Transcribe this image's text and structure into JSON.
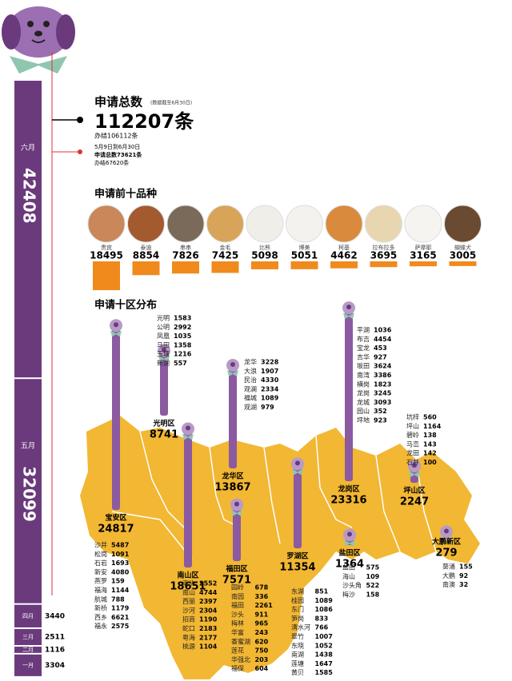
{
  "timeline": [
    {
      "month": "六月",
      "count": 42408
    },
    {
      "month": "五月",
      "count": 32099
    },
    {
      "month": "四月",
      "count": 3440
    },
    {
      "month": "三月",
      "count": 2511
    },
    {
      "month": "二月",
      "count": 1116
    },
    {
      "month": "一月",
      "count": 3304
    }
  ],
  "summary": {
    "title": "申请总数",
    "note": "(数据截至6月30日)",
    "total": "112207条",
    "done": "办结106112条",
    "period": "5月9日到6月30日",
    "period_total": "申请总数73621条",
    "period_done": "办结67620条"
  },
  "breeds": {
    "title": "申请前十品种",
    "items": [
      {
        "name": "贵宾",
        "count": 18495
      },
      {
        "name": "泰迪",
        "count": 8854
      },
      {
        "name": "串串",
        "count": 7826
      },
      {
        "name": "金毛",
        "count": 7425
      },
      {
        "name": "比熊",
        "count": 5098
      },
      {
        "name": "博美",
        "count": 5051
      },
      {
        "name": "柯基",
        "count": 4462
      },
      {
        "name": "拉布拉多",
        "count": 3695
      },
      {
        "name": "萨摩耶",
        "count": 3165
      },
      {
        "name": "蝴蝶犬",
        "count": 3005
      }
    ]
  },
  "districts": {
    "title": "申请十区分布",
    "items": [
      {
        "name": "宝安区",
        "count": 24817,
        "streets": [
          {
            "name": "沙井",
            "count": 5487
          },
          {
            "name": "松岗",
            "count": 1091
          },
          {
            "name": "石岩",
            "count": 1693
          },
          {
            "name": "新安",
            "count": 4080
          },
          {
            "name": "燕罗",
            "count": 159
          },
          {
            "name": "福海",
            "count": 1144
          },
          {
            "name": "航城",
            "count": 788
          },
          {
            "name": "新桥",
            "count": 1179
          },
          {
            "name": "西乡",
            "count": 6621
          },
          {
            "name": "福永",
            "count": 2575
          }
        ]
      },
      {
        "name": "光明区",
        "count": 8741,
        "streets": [
          {
            "name": "光明",
            "count": 1583
          },
          {
            "name": "公明",
            "count": 2992
          },
          {
            "name": "凤凰",
            "count": 1035
          },
          {
            "name": "马田",
            "count": 1358
          },
          {
            "name": "玉塘",
            "count": 1216
          },
          {
            "name": "新湖",
            "count": 557
          }
        ]
      },
      {
        "name": "南山区",
        "count": 18651,
        "streets": [
          {
            "name": "南头",
            "count": 2552
          },
          {
            "name": "南山",
            "count": 4744
          },
          {
            "name": "西丽",
            "count": 2397
          },
          {
            "name": "沙河",
            "count": 2304
          },
          {
            "name": "招商",
            "count": 1190
          },
          {
            "name": "蛇口",
            "count": 2183
          },
          {
            "name": "粤海",
            "count": 2177
          },
          {
            "name": "桃源",
            "count": 1104
          }
        ]
      },
      {
        "name": "龙华区",
        "count": 13867,
        "streets": [
          {
            "name": "龙华",
            "count": 3228
          },
          {
            "name": "大浪",
            "count": 1907
          },
          {
            "name": "民治",
            "count": 4330
          },
          {
            "name": "观澜",
            "count": 2334
          },
          {
            "name": "福城",
            "count": 1089
          },
          {
            "name": "观湖",
            "count": 979
          }
        ]
      },
      {
        "name": "福田区",
        "count": 7571,
        "streets": [
          {
            "name": "园岭",
            "count": 678
          },
          {
            "name": "南园",
            "count": 336
          },
          {
            "name": "福田",
            "count": 2261
          },
          {
            "name": "沙头",
            "count": 911
          },
          {
            "name": "梅林",
            "count": 965
          },
          {
            "name": "华富",
            "count": 243
          },
          {
            "name": "香蜜湖",
            "count": 620
          },
          {
            "name": "莲花",
            "count": 750
          },
          {
            "name": "华强北",
            "count": 203
          },
          {
            "name": "福保",
            "count": 604
          }
        ]
      },
      {
        "name": "罗湖区",
        "count": 11354,
        "streets": [
          {
            "name": "东湖",
            "count": 851
          },
          {
            "name": "桂园",
            "count": 1089
          },
          {
            "name": "东门",
            "count": 1086
          },
          {
            "name": "笋岗",
            "count": 833
          },
          {
            "name": "清水河",
            "count": 766
          },
          {
            "name": "翠竹",
            "count": 1007
          },
          {
            "name": "东晓",
            "count": 1052
          },
          {
            "name": "南湖",
            "count": 1438
          },
          {
            "name": "莲塘",
            "count": 1647
          },
          {
            "name": "黄贝",
            "count": 1585
          }
        ]
      },
      {
        "name": "龙岗区",
        "count": 23316,
        "streets": [
          {
            "name": "平湖",
            "count": 1036
          },
          {
            "name": "布吉",
            "count": 4454
          },
          {
            "name": "宝龙",
            "count": 453
          },
          {
            "name": "吉华",
            "count": 927
          },
          {
            "name": "坂田",
            "count": 3624
          },
          {
            "name": "南湾",
            "count": 3386
          },
          {
            "name": "横岗",
            "count": 1823
          },
          {
            "name": "龙岗",
            "count": 3245
          },
          {
            "name": "龙城",
            "count": 3093
          },
          {
            "name": "园山",
            "count": 352
          },
          {
            "name": "坪地",
            "count": 923
          }
        ]
      },
      {
        "name": "盐田区",
        "count": 1364,
        "streets": [
          {
            "name": "盐田",
            "count": 575
          },
          {
            "name": "海山",
            "count": 109
          },
          {
            "name": "沙头角",
            "count": 522
          },
          {
            "name": "梅沙",
            "count": 158
          }
        ]
      },
      {
        "name": "坪山区",
        "count": 2247,
        "streets": [
          {
            "name": "坑梓",
            "count": 560
          },
          {
            "name": "坪山",
            "count": 1164
          },
          {
            "name": "碧岭",
            "count": 138
          },
          {
            "name": "马峦",
            "count": 143
          },
          {
            "name": "龙田",
            "count": 142
          },
          {
            "name": "石井",
            "count": 100
          }
        ]
      },
      {
        "name": "大鹏新区",
        "count": 279,
        "streets": [
          {
            "name": "葵涌",
            "count": 155
          },
          {
            "name": "大鹏",
            "count": 92
          },
          {
            "name": "南澳",
            "count": 32
          }
        ]
      }
    ]
  }
}
